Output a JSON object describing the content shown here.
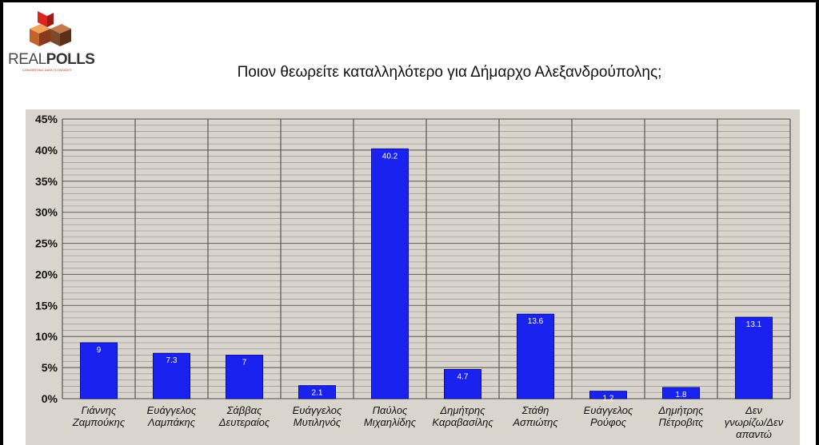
{
  "logo": {
    "brand_real": "REAL",
    "brand_polls": "POLLS",
    "tagline": "CONVERTING DATA TO INSIGHT"
  },
  "chart_data": {
    "type": "bar",
    "title": "Ποιον θεωρείτε καταλληλότερο για Δήμαρχο Αλεξανδρούπολης;",
    "categories": [
      [
        "Γιάννης",
        "Ζαμπούκης"
      ],
      [
        "Ευάγγελος",
        "Λαμπάκης"
      ],
      [
        "Σάββας",
        "Δευτεραίος"
      ],
      [
        "Ευάγγελος",
        "Μυτιληνός"
      ],
      [
        "Παύλος",
        "Μιχαηλίδης"
      ],
      [
        "Δημήτρης",
        "Καραβασίλης"
      ],
      [
        "Στάθη",
        "Ασπιώτης"
      ],
      [
        "Ευάγγελος",
        "Ρούφος"
      ],
      [
        "Δημήτρης",
        "Πέτροβιτς"
      ],
      [
        "Δεν",
        "γνωρίζω/Δεν",
        "απαντώ"
      ]
    ],
    "values": [
      9,
      7.3,
      7,
      2.1,
      40.2,
      4.7,
      13.6,
      1.2,
      1.8,
      13.1
    ],
    "value_labels": [
      "9",
      "7.3",
      "7",
      "2.1",
      "40.2",
      "4.7",
      "13.6",
      "1.2",
      "1.8",
      "13.1"
    ],
    "ylim": [
      0,
      45
    ],
    "yticks": [
      0,
      5,
      10,
      15,
      20,
      25,
      30,
      35,
      40,
      45
    ],
    "ytick_labels": [
      "0%",
      "5%",
      "10%",
      "15%",
      "20%",
      "25%",
      "30%",
      "35%",
      "40%",
      "45%"
    ],
    "xlabel": "",
    "ylabel": "",
    "grid": true,
    "colors": {
      "bar": "#1a22f0",
      "bar_edge": "#0a0f90",
      "plot_bg": "#d9d5cc",
      "grid": "#a09c94",
      "label": "#ffffff"
    }
  }
}
